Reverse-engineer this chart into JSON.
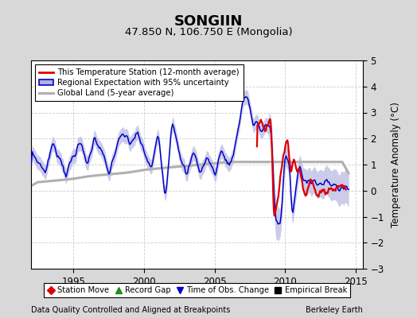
{
  "title": "SONGIIN",
  "subtitle": "47.850 N, 106.750 E (Mongolia)",
  "ylabel": "Temperature Anomaly (°C)",
  "xlim": [
    1992.0,
    2015.5
  ],
  "ylim": [
    -3,
    5
  ],
  "yticks": [
    -3,
    -2,
    -1,
    0,
    1,
    2,
    3,
    4,
    5
  ],
  "xticks": [
    1995,
    2000,
    2005,
    2010,
    2015
  ],
  "background_color": "#d8d8d8",
  "plot_bg_color": "#ffffff",
  "footer_left": "Data Quality Controlled and Aligned at Breakpoints",
  "footer_right": "Berkeley Earth",
  "legend_entries": [
    "This Temperature Station (12-month average)",
    "Regional Expectation with 95% uncertainty",
    "Global Land (5-year average)"
  ],
  "legend2_entries": [
    "Station Move",
    "Record Gap",
    "Time of Obs. Change",
    "Empirical Break"
  ],
  "red_color": "#dd0000",
  "blue_color": "#0000cc",
  "blue_fill_color": "#b0b0e0",
  "gray_color": "#b0b0b0",
  "grid_color": "#cccccc"
}
